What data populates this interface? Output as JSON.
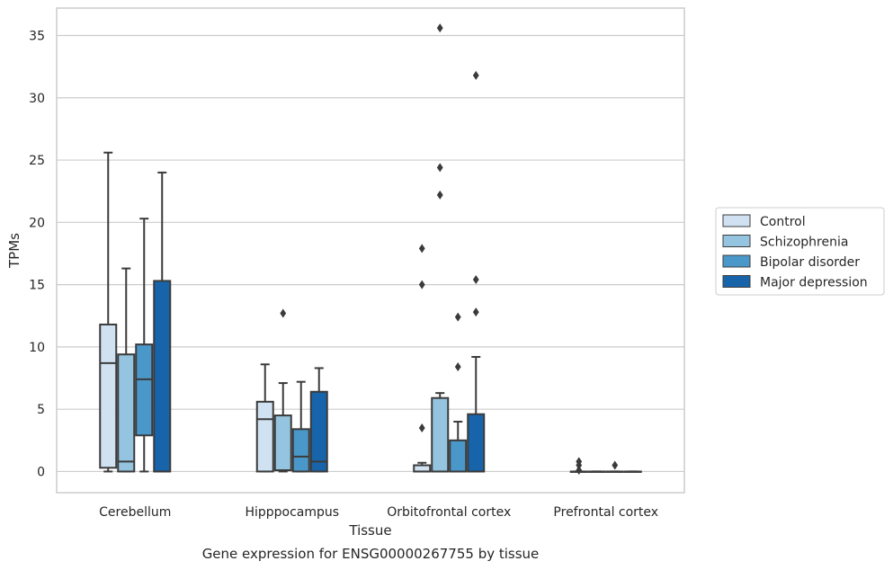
{
  "caption": "Gene expression for ENSG00000267755 by tissue",
  "chart_data": {
    "type": "box",
    "xlabel": "Tissue",
    "ylabel": "TPMs",
    "ylim": [
      -1.7,
      37.2
    ],
    "yticks": [
      0,
      5,
      10,
      15,
      20,
      25,
      30,
      35
    ],
    "grid": true,
    "legend_position": "right",
    "categories": [
      "Cerebellum",
      "Hipppocampus",
      "Orbitofrontal cortex",
      "Prefrontal cortex"
    ],
    "series": [
      {
        "name": "Control",
        "color": "#d0e1f2",
        "boxes": [
          {
            "whislo": 0.0,
            "q1": 0.3,
            "med": 8.7,
            "q3": 11.8,
            "whishi": 25.6,
            "fliers": []
          },
          {
            "whislo": 0.0,
            "q1": 0.0,
            "med": 4.2,
            "q3": 5.6,
            "whishi": 8.6,
            "fliers": []
          },
          {
            "whislo": 0.0,
            "q1": 0.0,
            "med": 0.0,
            "q3": 0.5,
            "whishi": 0.7,
            "fliers": [
              3.5,
              15.0,
              17.9
            ]
          },
          {
            "whislo": 0.0,
            "q1": 0.0,
            "med": 0.0,
            "q3": 0.0,
            "whishi": 0.0,
            "fliers": [
              0.1,
              0.5,
              0.8
            ]
          }
        ]
      },
      {
        "name": "Schizophrenia",
        "color": "#94c4df",
        "boxes": [
          {
            "whislo": 0.0,
            "q1": 0.0,
            "med": 0.8,
            "q3": 9.4,
            "whishi": 16.3,
            "fliers": []
          },
          {
            "whislo": 0.0,
            "q1": 0.1,
            "med": 0.1,
            "q3": 4.5,
            "whishi": 7.1,
            "fliers": [
              12.7
            ]
          },
          {
            "whislo": 0.0,
            "q1": 0.0,
            "med": 0.0,
            "q3": 5.9,
            "whishi": 6.3,
            "fliers": [
              22.2,
              24.4,
              35.6
            ]
          },
          {
            "whislo": 0.0,
            "q1": 0.0,
            "med": 0.0,
            "q3": 0.0,
            "whishi": 0.0,
            "fliers": []
          }
        ]
      },
      {
        "name": "Bipolar disorder",
        "color": "#4a98c9",
        "boxes": [
          {
            "whislo": 0.0,
            "q1": 2.9,
            "med": 7.4,
            "q3": 10.2,
            "whishi": 20.3,
            "fliers": []
          },
          {
            "whislo": 0.0,
            "q1": 0.0,
            "med": 1.2,
            "q3": 3.4,
            "whishi": 7.2,
            "fliers": []
          },
          {
            "whislo": 0.0,
            "q1": 0.0,
            "med": 0.0,
            "q3": 2.5,
            "whishi": 4.0,
            "fliers": [
              8.4,
              12.4
            ]
          },
          {
            "whislo": 0.0,
            "q1": 0.0,
            "med": 0.0,
            "q3": 0.0,
            "whishi": 0.0,
            "fliers": [
              0.5
            ]
          }
        ]
      },
      {
        "name": "Major depression",
        "color": "#1764ab",
        "boxes": [
          {
            "whislo": 0.0,
            "q1": 0.0,
            "med": 0.0,
            "q3": 15.3,
            "whishi": 24.0,
            "fliers": []
          },
          {
            "whislo": 0.0,
            "q1": 0.0,
            "med": 0.8,
            "q3": 6.4,
            "whishi": 8.3,
            "fliers": []
          },
          {
            "whislo": 0.0,
            "q1": 0.0,
            "med": 0.0,
            "q3": 4.6,
            "whishi": 9.2,
            "fliers": [
              12.8,
              15.4,
              31.8
            ]
          },
          {
            "whislo": 0.0,
            "q1": 0.0,
            "med": 0.0,
            "q3": 0.0,
            "whishi": 0.0,
            "fliers": []
          }
        ]
      }
    ]
  }
}
